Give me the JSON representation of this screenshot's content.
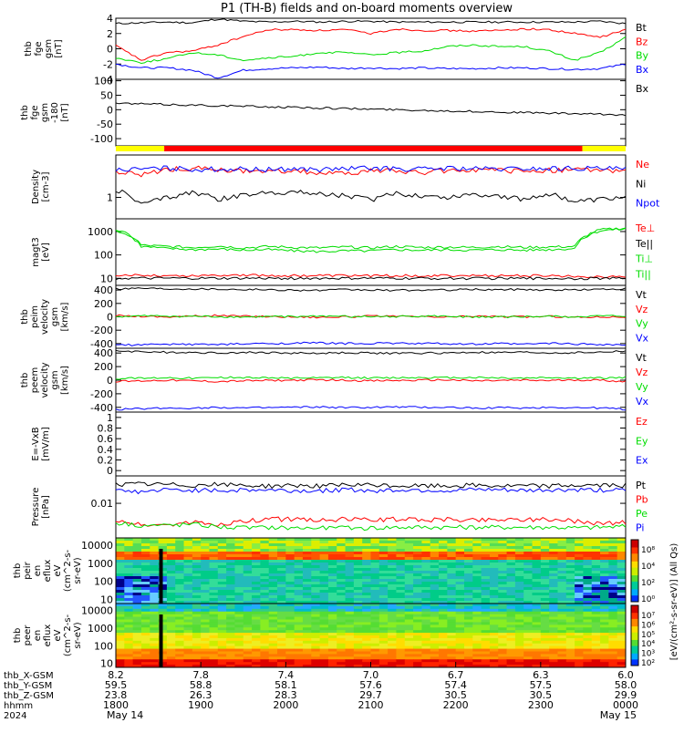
{
  "title": "P1 (TH-B) fields and on-board moments overview",
  "colors": {
    "black": "#000000",
    "red": "#ff0000",
    "green": "#00dd00",
    "blue": "#0000ff",
    "yellow": "#ffff00"
  },
  "chart_data": [
    {
      "type": "line",
      "id": "fgs",
      "ylabel": [
        "thb",
        "fge",
        "gsm",
        "[nT]"
      ],
      "ylim": [
        -4,
        4
      ],
      "yticks": [
        4,
        2,
        0,
        -2,
        -4
      ],
      "series": [
        {
          "name": "Bt",
          "color": "black",
          "values": [
            3.3,
            3.4,
            3.5,
            3.4,
            3.9,
            3.6,
            3.5,
            3.6,
            3.5,
            3.6,
            3.6,
            3.5,
            3.5,
            3.5,
            3.5,
            3.5,
            3.5,
            3.5,
            3.5,
            3.6,
            3.3
          ]
        },
        {
          "name": "Bz",
          "color": "red",
          "values": [
            0.4,
            -1.5,
            -0.5,
            -0.3,
            0.5,
            1.6,
            2.5,
            2.5,
            2.4,
            2.5,
            2.0,
            2.6,
            2.4,
            2.4,
            2.3,
            2.4,
            2.6,
            2.5,
            2.0,
            1.5,
            2.5
          ]
        },
        {
          "name": "By",
          "color": "green",
          "values": [
            -1.2,
            -1.8,
            -1.3,
            -0.5,
            -0.8,
            -1.5,
            -1.2,
            -1.0,
            -0.5,
            -0.5,
            -0.8,
            -0.5,
            -0.3,
            0.3,
            0.5,
            0.3,
            0.3,
            -0.3,
            -1.5,
            -0.5,
            1.5
          ]
        },
        {
          "name": "Bx",
          "color": "blue",
          "values": [
            -2.0,
            -2.5,
            -2.5,
            -2.8,
            -3.8,
            -2.8,
            -2.6,
            -2.5,
            -2.4,
            -2.6,
            -2.5,
            -2.6,
            -2.5,
            -2.6,
            -2.6,
            -2.5,
            -2.5,
            -2.6,
            -2.7,
            -2.6,
            -2.0
          ]
        }
      ]
    },
    {
      "type": "line",
      "id": "fge",
      "ylabel": [
        "thb",
        "fge",
        "gsm",
        "-180",
        "[nT]"
      ],
      "ylim": [
        -125,
        105
      ],
      "yticks": [
        100,
        50,
        0,
        -50,
        -100
      ],
      "series": [
        {
          "name": "Bx",
          "color": "black",
          "values": [
            22,
            20,
            18,
            16,
            14,
            12,
            10,
            8,
            6,
            4,
            2,
            0,
            -2,
            -4,
            -6,
            -8,
            -10,
            -12,
            -14,
            -16,
            -18
          ]
        }
      ]
    },
    {
      "type": "bar-strip",
      "id": "mode",
      "segments": [
        {
          "from": 0.0,
          "to": 0.095,
          "color": "yellow"
        },
        {
          "from": 0.095,
          "to": 0.915,
          "color": "red"
        },
        {
          "from": 0.915,
          "to": 1.0,
          "color": "yellow"
        }
      ]
    },
    {
      "type": "line",
      "id": "density",
      "ylabel": [
        "Density",
        "[cm-3]"
      ],
      "yscale": "log",
      "ylim": [
        0.35,
        8
      ],
      "yticks": [
        1
      ],
      "series": [
        {
          "name": "Ne",
          "color": "red",
          "values": [
            3.5,
            3.0,
            4.0,
            4.2,
            3.9,
            3.6,
            3.5,
            3.8,
            3.3,
            3.2,
            3.7,
            3.6,
            3.4,
            3.8,
            3.9,
            3.7,
            3.6,
            3.8,
            3.9,
            3.8,
            3.8
          ]
        },
        {
          "name": "Ni",
          "color": "black",
          "values": [
            1.5,
            0.7,
            1.0,
            1.3,
            0.9,
            1.1,
            1.3,
            1.3,
            1.2,
            1.1,
            0.9,
            1.2,
            1.1,
            1.0,
            1.2,
            1.1,
            0.9,
            1.2,
            0.8,
            0.9,
            1.0
          ]
        },
        {
          "name": "Npot",
          "color": "blue",
          "values": [
            3.8,
            4.0,
            4.2,
            4.0,
            4.0,
            4.0,
            3.9,
            4.1,
            3.9,
            4.1,
            4.2,
            4.1,
            4.0,
            4.2,
            4.1,
            4.0,
            4.1,
            4.1,
            4.2,
            4.1,
            4.0
          ]
        }
      ]
    },
    {
      "type": "line",
      "id": "temp",
      "ylabel": [
        "magt3",
        "[eV]"
      ],
      "yscale": "log",
      "ylim": [
        5,
        3500
      ],
      "yticks": [
        1000,
        100,
        10
      ],
      "series": [
        {
          "name": "Te⊥",
          "color": "red",
          "values": [
            12,
            14,
            13,
            13,
            14,
            14,
            13,
            13,
            13,
            13,
            13,
            13,
            13,
            13,
            13,
            13,
            13,
            13,
            12,
            12,
            12
          ]
        },
        {
          "name": "Te||",
          "color": "black",
          "values": [
            10,
            10,
            10,
            10,
            10,
            10,
            10,
            10,
            10,
            10,
            10,
            10,
            10,
            10,
            10,
            10,
            10,
            10,
            10,
            10,
            10
          ]
        },
        {
          "name": "Ti⊥",
          "color": "green",
          "values": [
            1200,
            260,
            230,
            210,
            240,
            200,
            230,
            210,
            200,
            220,
            200,
            230,
            210,
            220,
            210,
            230,
            210,
            220,
            230,
            1200,
            1400
          ]
        },
        {
          "name": "Ti||",
          "color": "green",
          "values": [
            1100,
            230,
            190,
            170,
            180,
            160,
            170,
            150,
            140,
            150,
            150,
            170,
            160,
            170,
            160,
            170,
            160,
            170,
            190,
            1100,
            1300
          ]
        }
      ]
    },
    {
      "type": "line",
      "id": "peim",
      "ylabel": [
        "thb",
        "peim",
        "velocity",
        "gsm",
        "[km/s]"
      ],
      "ylim": [
        -470,
        470
      ],
      "yticks": [
        400,
        200,
        0,
        -200,
        -400
      ],
      "series": [
        {
          "name": "Vt",
          "color": "black",
          "values": [
            420,
            430,
            420,
            420,
            415,
            410,
            405,
            400,
            395,
            405,
            400,
            395,
            400,
            400,
            410,
            405,
            410,
            400,
            405,
            410,
            420
          ]
        },
        {
          "name": "Vz",
          "color": "red",
          "values": [
            20,
            10,
            0,
            10,
            20,
            10,
            5,
            0,
            -5,
            0,
            10,
            5,
            0,
            -5,
            10,
            5,
            0,
            5,
            -5,
            0,
            0
          ]
        },
        {
          "name": "Vy",
          "color": "green",
          "values": [
            0,
            10,
            10,
            5,
            0,
            -5,
            0,
            5,
            10,
            5,
            0,
            5,
            10,
            5,
            0,
            -5,
            0,
            5,
            0,
            10,
            10
          ]
        },
        {
          "name": "Vx",
          "color": "blue",
          "values": [
            -420,
            -420,
            -410,
            -410,
            -415,
            -405,
            -400,
            -395,
            -390,
            -400,
            -395,
            -395,
            -400,
            -400,
            -410,
            -400,
            -410,
            -395,
            -405,
            -410,
            -420
          ]
        }
      ]
    },
    {
      "type": "line",
      "id": "peem",
      "ylabel": [
        "thb",
        "peem",
        "velocity",
        "gsm",
        "[km/s]"
      ],
      "ylim": [
        -470,
        470
      ],
      "yticks": [
        400,
        200,
        0,
        -200,
        -400
      ],
      "series": [
        {
          "name": "Vt",
          "color": "black",
          "values": [
            430,
            420,
            410,
            410,
            400,
            410,
            405,
            400,
            395,
            405,
            400,
            395,
            400,
            400,
            410,
            405,
            410,
            400,
            405,
            410,
            430
          ]
        },
        {
          "name": "Vz",
          "color": "red",
          "values": [
            -20,
            -10,
            0,
            -10,
            -20,
            -10,
            -5,
            0,
            5,
            0,
            -10,
            -5,
            0,
            5,
            -10,
            -5,
            0,
            -5,
            5,
            0,
            -20
          ]
        },
        {
          "name": "Vy",
          "color": "green",
          "values": [
            20,
            30,
            40,
            30,
            40,
            40,
            35,
            30,
            30,
            40,
            30,
            35,
            40,
            35,
            40,
            35,
            30,
            40,
            30,
            30,
            40
          ]
        },
        {
          "name": "Vx",
          "color": "blue",
          "values": [
            -430,
            -420,
            -410,
            -410,
            -400,
            -410,
            -405,
            -400,
            -395,
            -405,
            -400,
            -395,
            -400,
            -400,
            -410,
            -405,
            -410,
            -400,
            -405,
            -410,
            -430
          ]
        }
      ]
    },
    {
      "type": "line",
      "id": "efield",
      "ylabel": [
        "E=-VxB",
        "[mV/m]"
      ],
      "ylim": [
        -0.1,
        1.1
      ],
      "yticks": [
        1.0,
        0.8,
        0.6,
        0.4,
        0.2,
        0.0
      ],
      "series": [
        {
          "name": "Ez",
          "color": "red",
          "values": []
        },
        {
          "name": "Ey",
          "color": "green",
          "values": []
        },
        {
          "name": "Ex",
          "color": "blue",
          "values": []
        }
      ]
    },
    {
      "type": "line",
      "id": "pressure",
      "ylabel": [
        "Pressure",
        "[nPa]"
      ],
      "yscale": "log",
      "ylim": [
        0.0015,
        0.045
      ],
      "yticks": [
        0.01
      ],
      "series": [
        {
          "name": "Pt",
          "color": "black",
          "values": [
            0.028,
            0.029,
            0.028,
            0.027,
            0.028,
            0.027,
            0.026,
            0.027,
            0.026,
            0.027,
            0.027,
            0.026,
            0.026,
            0.026,
            0.027,
            0.026,
            0.026,
            0.026,
            0.027,
            0.027,
            0.027
          ]
        },
        {
          "name": "Pb",
          "color": "red",
          "values": [
            0.004,
            0.003,
            0.003,
            0.0035,
            0.003,
            0.0038,
            0.0042,
            0.0042,
            0.004,
            0.0042,
            0.0041,
            0.0042,
            0.0041,
            0.0041,
            0.004,
            0.0041,
            0.0042,
            0.0041,
            0.0038,
            0.0033,
            0.0035
          ]
        },
        {
          "name": "Pe",
          "color": "green",
          "values": [
            0.0035,
            0.003,
            0.003,
            0.0032,
            0.0028,
            0.0026,
            0.0027,
            0.0026,
            0.0026,
            0.0026,
            0.0026,
            0.0027,
            0.0027,
            0.0027,
            0.0027,
            0.0027,
            0.0027,
            0.0027,
            0.0026,
            0.0027,
            0.0028
          ]
        },
        {
          "name": "Pi",
          "color": "blue",
          "values": [
            0.02,
            0.019,
            0.021,
            0.021,
            0.02,
            0.021,
            0.021,
            0.02,
            0.02,
            0.021,
            0.02,
            0.021,
            0.021,
            0.02,
            0.021,
            0.021,
            0.02,
            0.021,
            0.021,
            0.021,
            0.02
          ]
        }
      ]
    },
    {
      "type": "heatmap",
      "id": "peir",
      "ylabel": [
        "thb",
        "peir",
        "en",
        "eflux",
        "eV",
        "(cm^2-s-",
        "sr-eV)"
      ],
      "yscale": "log",
      "ylim": [
        6,
        25000
      ],
      "yticks": [
        10000,
        1000,
        100,
        10
      ]
    },
    {
      "type": "heatmap",
      "id": "peer",
      "ylabel": [
        "thb",
        "peer",
        "en",
        "eflux",
        "eV",
        "(cm^2-s-",
        "sr-eV)"
      ],
      "yscale": "log",
      "ylim": [
        6,
        25000
      ],
      "yticks": [
        10000,
        1000,
        100,
        10
      ]
    }
  ],
  "colorbar1": {
    "ticks": [
      "10⁸",
      "10⁴",
      "10²",
      "10⁰"
    ]
  },
  "colorbar2": {
    "ticks": [
      "10⁷",
      "10⁶",
      "10⁵",
      "10⁴",
      "10³",
      "10²"
    ]
  },
  "colorbar_label": "[eV/(cm²-s-sr-eV)] (All Qs)",
  "xaxis": {
    "row_labels": [
      "thb_X-GSM",
      "thb_Y-GSM",
      "thb_Z-GSM",
      "hhmm",
      "2024"
    ],
    "columns": [
      [
        "8.2",
        "59.5",
        "23.8",
        "1800",
        "May 14"
      ],
      [
        "7.8",
        "58.8",
        "26.3",
        "1900",
        ""
      ],
      [
        "7.4",
        "58.1",
        "28.3",
        "2000",
        ""
      ],
      [
        "7.0",
        "57.6",
        "29.7",
        "2100",
        ""
      ],
      [
        "6.7",
        "57.4",
        "30.5",
        "2200",
        ""
      ],
      [
        "6.3",
        "57.5",
        "30.5",
        "2300",
        ""
      ],
      [
        "6.0",
        "58.0",
        "29.9",
        "0000",
        "May 15"
      ]
    ]
  }
}
